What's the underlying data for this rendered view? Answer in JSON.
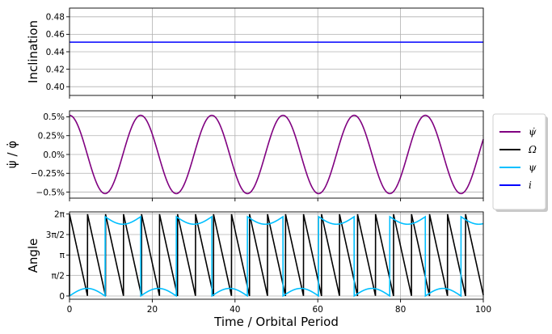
{
  "chart_data": [
    {
      "type": "line",
      "ylabel": "Inclination",
      "ylim": [
        0.39,
        0.49
      ],
      "xlim": [
        0,
        100
      ],
      "yticks": [
        "0.40",
        "0.42",
        "0.44",
        "0.46",
        "0.48"
      ],
      "ytick_values": [
        0.4,
        0.42,
        0.44,
        0.46,
        0.48
      ],
      "grid": true,
      "series": [
        {
          "name": "i",
          "color": "#0000ff",
          "x": [
            0,
            100
          ],
          "y": [
            0.451,
            0.451
          ]
        }
      ]
    },
    {
      "type": "line",
      "ylabel": "ψ̇ / φ̇",
      "ylim": [
        -0.0058,
        0.0058
      ],
      "xlim": [
        0,
        100
      ],
      "yticks": [
        "0.5%",
        "0.25%",
        "0.0%",
        "−0.25%",
        "−0.5%"
      ],
      "ytick_values": [
        0.005,
        0.0025,
        0.0,
        -0.0025,
        -0.005
      ],
      "grid": true,
      "series": [
        {
          "name": "ψ̇",
          "color": "#800080",
          "form": "cosine",
          "amplitude": 0.0052,
          "period": 17.2,
          "phase": 0
        }
      ]
    },
    {
      "type": "line",
      "ylabel": "Angle",
      "xlabel": "Time / Orbital Period",
      "ylim": [
        -0.25,
        6.45
      ],
      "xlim": [
        0,
        100
      ],
      "xticks": [
        "0",
        "20",
        "40",
        "60",
        "80",
        "100"
      ],
      "xtick_values": [
        0,
        20,
        40,
        60,
        80,
        100
      ],
      "yticks": [
        "2π",
        "3π/2",
        "π",
        "π/2",
        "0"
      ],
      "ytick_values": [
        6.2832,
        4.7124,
        3.1416,
        1.5708,
        0
      ],
      "grid": true,
      "series": [
        {
          "name": "Ω",
          "color": "#000000",
          "form": "sawtooth-down",
          "start": 6.2832,
          "period": 4.35
        },
        {
          "name": "ψ",
          "color": "#00bfff",
          "form": "wrapped-oscillation",
          "period": 17.2,
          "amplitude": 0.58
        }
      ]
    }
  ],
  "legend": {
    "placement": "right-middle",
    "items": [
      {
        "label": "ψ̇",
        "color": "#800080"
      },
      {
        "label": "Ω",
        "color": "#000000"
      },
      {
        "label": "ψ",
        "color": "#00bfff"
      },
      {
        "label": "i",
        "color": "#0000ff"
      }
    ]
  }
}
